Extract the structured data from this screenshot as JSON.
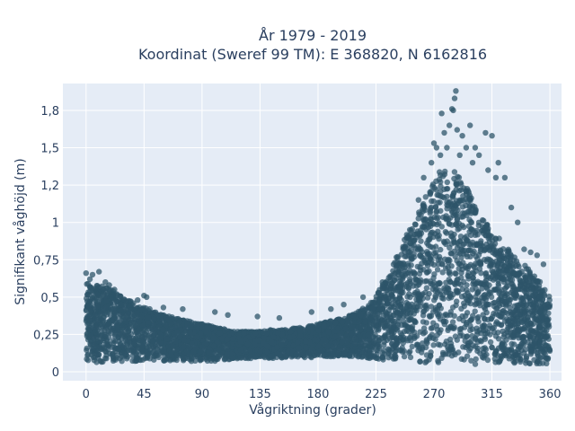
{
  "chart_data": {
    "type": "scatter",
    "title_line1": "År 1979 - 2019",
    "title_line2": "Koordinat (Sweref 99 TM): E 368820, N 6162816",
    "xlabel": "Vågriktning (grader)",
    "ylabel": "Signifikant våghöjd (m)",
    "xlim": [
      -18,
      369
    ],
    "ylim": [
      -0.06,
      1.93
    ],
    "x_ticks": [
      0,
      45,
      90,
      135,
      180,
      225,
      270,
      315,
      360
    ],
    "x_tick_labels": [
      "0",
      "45",
      "90",
      "135",
      "180",
      "225",
      "270",
      "315",
      "360"
    ],
    "y_ticks": [
      0,
      0.25,
      0.5,
      0.75,
      1,
      1.25,
      1.5,
      1.75
    ],
    "y_tick_labels": [
      "0",
      "0,25",
      "0,5",
      "0,75",
      "1",
      "1,2",
      "1,5",
      "1,8"
    ],
    "grid": true,
    "marker_color": "#2e5569",
    "plot_bg": "#e5ecf6",
    "envelope": {
      "direction": [
        0,
        10,
        20,
        30,
        40,
        50,
        60,
        70,
        80,
        90,
        100,
        110,
        120,
        130,
        140,
        150,
        160,
        170,
        180,
        190,
        200,
        210,
        220,
        230,
        240,
        250,
        260,
        265,
        270,
        275,
        280,
        285,
        290,
        295,
        300,
        305,
        310,
        315,
        320,
        325,
        330,
        335,
        340,
        345,
        350,
        355,
        360
      ],
      "height_min": [
        0.06,
        0.06,
        0.07,
        0.07,
        0.07,
        0.07,
        0.07,
        0.07,
        0.07,
        0.07,
        0.07,
        0.08,
        0.09,
        0.09,
        0.09,
        0.09,
        0.09,
        0.09,
        0.1,
        0.1,
        0.1,
        0.1,
        0.09,
        0.08,
        0.08,
        0.07,
        0.06,
        0.06,
        0.06,
        0.06,
        0.06,
        0.06,
        0.05,
        0.05,
        0.05,
        0.05,
        0.05,
        0.05,
        0.05,
        0.05,
        0.05,
        0.05,
        0.05,
        0.05,
        0.05,
        0.05,
        0.05
      ],
      "height_max": [
        0.6,
        0.58,
        0.55,
        0.5,
        0.45,
        0.42,
        0.38,
        0.36,
        0.34,
        0.32,
        0.3,
        0.28,
        0.27,
        0.27,
        0.28,
        0.28,
        0.29,
        0.3,
        0.32,
        0.34,
        0.36,
        0.4,
        0.45,
        0.58,
        0.75,
        0.95,
        1.1,
        1.2,
        1.3,
        1.35,
        1.38,
        1.35,
        1.3,
        1.25,
        1.15,
        1.05,
        1.0,
        0.95,
        0.9,
        0.85,
        0.8,
        0.75,
        0.72,
        0.68,
        0.62,
        0.58,
        0.5
      ]
    },
    "outliers": {
      "x": [
        0,
        3,
        5,
        10,
        15,
        18,
        22,
        40,
        45,
        47,
        60,
        75,
        100,
        110,
        133,
        150,
        175,
        190,
        200,
        215,
        230,
        258,
        262,
        268,
        270,
        272,
        275,
        276,
        278,
        280,
        282,
        284,
        285,
        286,
        287,
        288,
        290,
        292,
        295,
        298,
        300,
        302,
        305,
        310,
        312,
        315,
        318,
        320,
        325,
        330,
        335,
        340,
        345,
        350,
        355
      ],
      "y": [
        0.66,
        0.62,
        0.65,
        0.67,
        0.6,
        0.58,
        0.55,
        0.48,
        0.51,
        0.5,
        0.43,
        0.42,
        0.4,
        0.38,
        0.37,
        0.36,
        0.4,
        0.42,
        0.45,
        0.5,
        0.6,
        1.15,
        1.3,
        1.4,
        1.53,
        1.5,
        1.45,
        1.73,
        1.6,
        1.5,
        1.65,
        1.76,
        1.75,
        1.83,
        1.88,
        1.62,
        1.45,
        1.58,
        1.5,
        1.65,
        1.4,
        1.5,
        1.45,
        1.6,
        1.35,
        1.58,
        1.3,
        1.4,
        1.3,
        1.1,
        1.0,
        0.82,
        0.8,
        0.78,
        0.72
      ]
    }
  }
}
